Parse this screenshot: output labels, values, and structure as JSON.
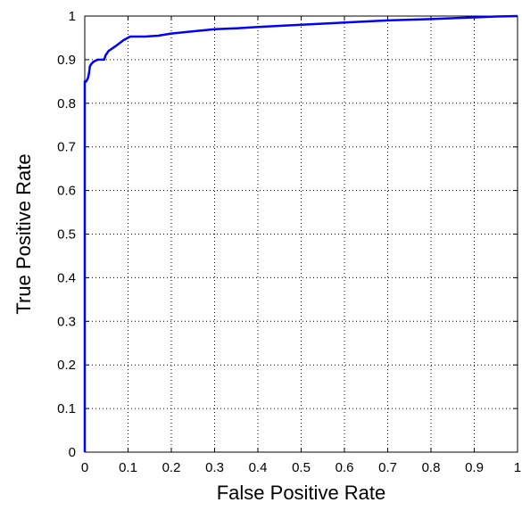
{
  "chart_data": {
    "type": "line",
    "title": "",
    "xlabel": "False Positive Rate",
    "ylabel": "True Positive Rate",
    "xlim": [
      0,
      1
    ],
    "ylim": [
      0,
      1
    ],
    "grid": true,
    "legend": "none",
    "x_ticks": [
      "0",
      "0.1",
      "0.2",
      "0.3",
      "0.4",
      "0.5",
      "0.6",
      "0.7",
      "0.8",
      "0.9",
      "1"
    ],
    "y_ticks": [
      "0",
      "0.1",
      "0.2",
      "0.3",
      "0.4",
      "0.5",
      "0.6",
      "0.7",
      "0.8",
      "0.9",
      "1"
    ],
    "series": [
      {
        "color": "#0000ff",
        "x": [
          0,
          0,
          0.003,
          0.006,
          0.008,
          0.01,
          0.012,
          0.015,
          0.02,
          0.03,
          0.045,
          0.048,
          0.055,
          0.07,
          0.09,
          0.105,
          0.12,
          0.14,
          0.17,
          0.2,
          0.25,
          0.3,
          0.35,
          0.4,
          0.5,
          0.6,
          0.7,
          0.8,
          0.9,
          0.95,
          1.0
        ],
        "y": [
          0,
          0.85,
          0.85,
          0.855,
          0.86,
          0.87,
          0.885,
          0.89,
          0.895,
          0.9,
          0.9,
          0.91,
          0.92,
          0.93,
          0.945,
          0.953,
          0.953,
          0.953,
          0.955,
          0.96,
          0.965,
          0.97,
          0.972,
          0.975,
          0.98,
          0.985,
          0.99,
          0.993,
          0.997,
          0.999,
          1.0
        ]
      }
    ]
  }
}
